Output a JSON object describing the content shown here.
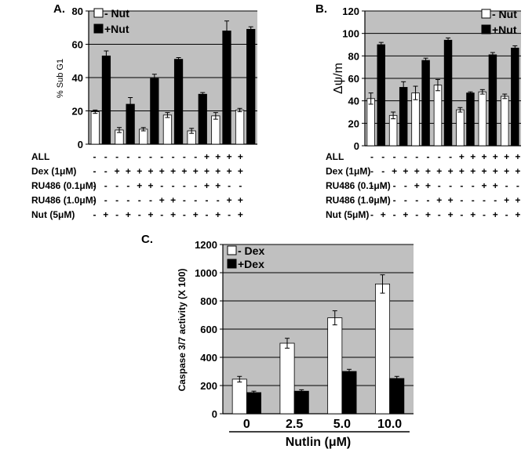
{
  "chart_data": [
    {
      "type": "bar",
      "panel_label": "A.",
      "ylabel": "% Sub G1",
      "ylim": [
        0,
        80
      ],
      "yticks": [
        "0",
        "20",
        "40",
        "60",
        "80"
      ],
      "grid": true,
      "legend_position": "top-left",
      "series": [
        {
          "name": "- Nut",
          "color": "#ffffff",
          "values": [
            19.5,
            8.5,
            9,
            17.5,
            8,
            17,
            20.5
          ],
          "errors": [
            1,
            1.5,
            1,
            1.5,
            1.5,
            2,
            1
          ]
        },
        {
          "name": "+Nut",
          "color": "#000000",
          "values": [
            53,
            24,
            39.5,
            51,
            30,
            68,
            69
          ],
          "errors": [
            3,
            4,
            2.5,
            1,
            1,
            6,
            1.5
          ]
        }
      ],
      "conditions": {
        "rows": [
          {
            "label": "ALL",
            "signs": [
              "-",
              "-",
              "-",
              "-",
              "-",
              "-",
              "-",
              "-",
              "-",
              "-",
              "+",
              "+",
              "+",
              "+"
            ]
          },
          {
            "label": "Dex (1μM)",
            "signs": [
              "-",
              "-",
              "+",
              "+",
              "+",
              "+",
              "+",
              "+",
              "+",
              "+",
              "+",
              "+",
              "+",
              "+"
            ]
          },
          {
            "label": "RU486 (0.1μM)",
            "signs": [
              "-",
              "-",
              "-",
              "-",
              "+",
              "+",
              "-",
              "-",
              "-",
              "-",
              "+",
              "+",
              "-",
              "-"
            ]
          },
          {
            "label": "RU486 (1.0μM)",
            "signs": [
              "-",
              "-",
              "-",
              "-",
              "-",
              "-",
              "+",
              "+",
              "-",
              "-",
              "-",
              "-",
              "+",
              "+"
            ]
          },
          {
            "label": "Nut (5μM)",
            "signs": [
              "-",
              "+",
              "-",
              "+",
              "-",
              "+",
              "-",
              "+",
              "-",
              "+",
              "-",
              "+",
              "-",
              "+"
            ]
          }
        ]
      }
    },
    {
      "type": "bar",
      "panel_label": "B.",
      "ylabel": "Δψ/m",
      "ylim": [
        0,
        120
      ],
      "yticks": [
        "0",
        "20",
        "40",
        "60",
        "80",
        "100",
        "120"
      ],
      "grid": true,
      "legend_position": "top-right",
      "series": [
        {
          "name": "- Nut",
          "color": "#ffffff",
          "values": [
            42,
            27,
            47,
            54,
            32,
            48,
            44
          ],
          "errors": [
            5,
            3,
            6,
            5,
            2,
            2,
            2
          ]
        },
        {
          "name": "+Nut",
          "color": "#000000",
          "values": [
            90,
            52,
            76,
            94,
            47,
            81,
            87
          ],
          "errors": [
            2,
            5,
            2,
            2,
            1,
            2,
            2
          ]
        }
      ],
      "conditions": {
        "rows": [
          {
            "label": "ALL",
            "signs": [
              "-",
              "-",
              "-",
              "-",
              "-",
              "-",
              "-",
              "-",
              "+",
              "+",
              "+",
              "+",
              "+",
              "+"
            ]
          },
          {
            "label": "Dex (1μM)",
            "signs": [
              "-",
              "-",
              "+",
              "+",
              "+",
              "+",
              "+",
              "+",
              "+",
              "+",
              "+",
              "+",
              "+",
              "+"
            ]
          },
          {
            "label": "RU486 (0.1μM)",
            "signs": [
              "-",
              "-",
              "-",
              "-",
              "+",
              "+",
              "-",
              "-",
              "-",
              "-",
              "+",
              "+",
              "-",
              "-"
            ]
          },
          {
            "label": "RU486 (1.0μM)",
            "signs": [
              "-",
              "-",
              "-",
              "-",
              "-",
              "-",
              "+",
              "+",
              "-",
              "-",
              "-",
              "-",
              "+",
              "+"
            ]
          },
          {
            "label": "Nut (5μM)",
            "signs": [
              "-",
              "+",
              "-",
              "+",
              "-",
              "+",
              "-",
              "+",
              "-",
              "+",
              "-",
              "+",
              "-",
              "+"
            ]
          }
        ]
      }
    },
    {
      "type": "bar",
      "panel_label": "C.",
      "ylabel": "Caspase 3/7 activity (X 100)",
      "xlabel": "Nutlin (μM)",
      "categories": [
        "0",
        "2.5",
        "5.0",
        "10.0"
      ],
      "ylim": [
        0,
        1200
      ],
      "yticks": [
        "0",
        "200",
        "400",
        "600",
        "800",
        "1000",
        "1200"
      ],
      "grid": true,
      "legend_position": "top-left",
      "series": [
        {
          "name": "- Dex",
          "color": "#ffffff",
          "values": [
            245,
            500,
            680,
            920
          ],
          "errors": [
            20,
            35,
            50,
            65
          ]
        },
        {
          "name": "+Dex",
          "color": "#000000",
          "values": [
            150,
            160,
            300,
            250
          ],
          "errors": [
            10,
            10,
            15,
            15
          ]
        }
      ]
    }
  ]
}
